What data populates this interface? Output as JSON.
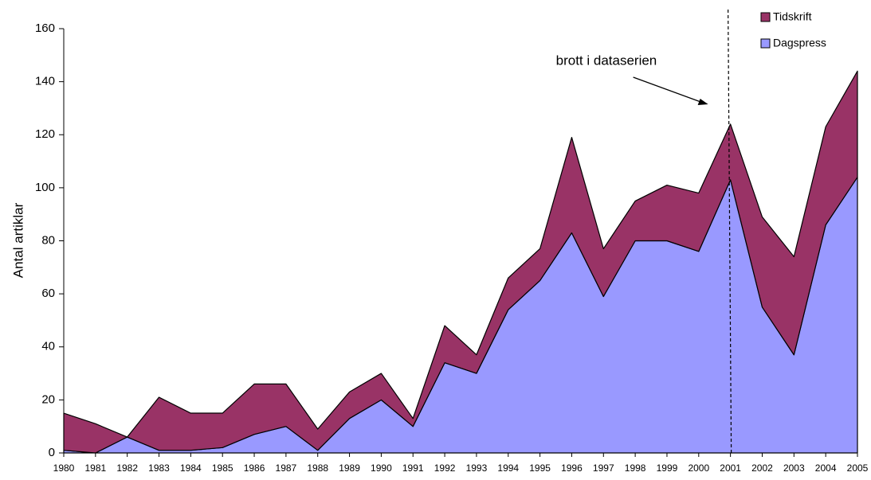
{
  "chart_data": {
    "type": "stacked_area",
    "y_label": "Antal artiklar",
    "categories": [
      "1980",
      "1981",
      "1982",
      "1983",
      "1984",
      "1985",
      "1986",
      "1987",
      "1988",
      "1989",
      "1990",
      "1991",
      "1992",
      "1993",
      "1994",
      "1995",
      "1996",
      "1997",
      "1998",
      "1999",
      "2000",
      "2001",
      "2002",
      "2003",
      "2004",
      "2005"
    ],
    "series": [
      {
        "name": "Dagspress",
        "color": "#9999ff",
        "values": [
          1,
          0,
          6,
          1,
          1,
          2,
          7,
          10,
          1,
          13,
          20,
          10,
          34,
          30,
          54,
          65,
          83,
          59,
          80,
          80,
          76,
          103,
          55,
          37,
          86,
          104
        ]
      },
      {
        "name": "Tidskrift",
        "color": "#993366",
        "values": [
          14,
          11,
          0,
          20,
          14,
          13,
          19,
          16,
          8,
          10,
          10,
          3,
          14,
          7,
          12,
          12,
          36,
          18,
          15,
          21,
          22,
          21,
          34,
          37,
          37,
          40
        ]
      }
    ],
    "ylim": [
      0,
      160
    ],
    "yticks": [
      0,
      20,
      40,
      60,
      80,
      100,
      120,
      140,
      160
    ],
    "annotation": {
      "text": "brott i dataserien",
      "x": "2001"
    },
    "legend": "top-right"
  }
}
